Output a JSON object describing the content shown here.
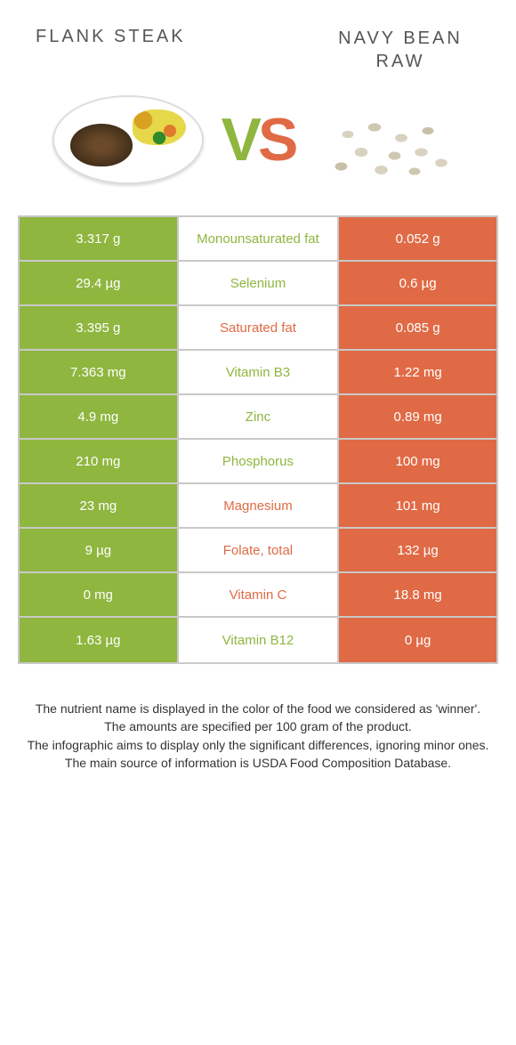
{
  "colors": {
    "left": "#8fb63f",
    "right": "#e06a45",
    "border": "#c9c9c9",
    "mid_text_left": "#8fb63f",
    "mid_text_right": "#e06a45"
  },
  "header": {
    "left_title": "FLANK STEAK",
    "right_title": "NAVY BEAN RAW",
    "vs": {
      "v": "V",
      "s": "S"
    }
  },
  "rows": [
    {
      "left": "3.317 g",
      "mid": "Monounsaturated fat",
      "right": "0.052 g",
      "winner": "left"
    },
    {
      "left": "29.4 µg",
      "mid": "Selenium",
      "right": "0.6 µg",
      "winner": "left"
    },
    {
      "left": "3.395 g",
      "mid": "Saturated fat",
      "right": "0.085 g",
      "winner": "right"
    },
    {
      "left": "7.363 mg",
      "mid": "Vitamin B3",
      "right": "1.22 mg",
      "winner": "left"
    },
    {
      "left": "4.9 mg",
      "mid": "Zinc",
      "right": "0.89 mg",
      "winner": "left"
    },
    {
      "left": "210 mg",
      "mid": "Phosphorus",
      "right": "100 mg",
      "winner": "left"
    },
    {
      "left": "23 mg",
      "mid": "Magnesium",
      "right": "101 mg",
      "winner": "right"
    },
    {
      "left": "9 µg",
      "mid": "Folate, total",
      "right": "132 µg",
      "winner": "right"
    },
    {
      "left": "0 mg",
      "mid": "Vitamin C",
      "right": "18.8 mg",
      "winner": "right"
    },
    {
      "left": "1.63 µg",
      "mid": "Vitamin B12",
      "right": "0 µg",
      "winner": "left"
    }
  ],
  "footer": {
    "line1": "The nutrient name is displayed in the color of the food we considered as 'winner'.",
    "line2": "The amounts are specified per 100 gram of the product.",
    "line3": "The infographic aims to display only the significant differences, ignoring minor ones.",
    "line4": "The main source of information is USDA Food Composition Database."
  }
}
